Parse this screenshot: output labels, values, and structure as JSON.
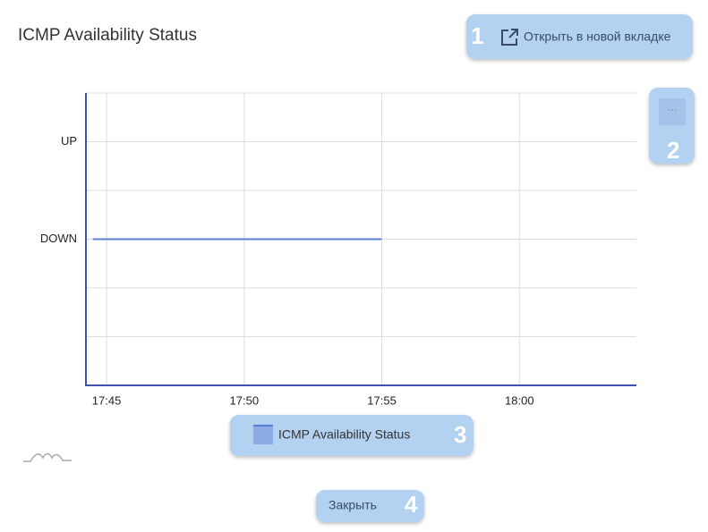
{
  "title": "ICMP Availability Status",
  "buttons": {
    "open_new_tab": "Открыть в новой вкладке",
    "menu": "···",
    "close": "Закрыть"
  },
  "badges": [
    "1",
    "2",
    "3",
    "4"
  ],
  "chart_data": {
    "type": "line",
    "x": [
      1064.5,
      1075
    ],
    "series": [
      {
        "name": "ICMP Availability Status",
        "color": "#5b7fd4",
        "values": [
          0,
          0
        ]
      }
    ],
    "xlim": [
      1064.25,
      1084.25
    ],
    "xticks": [
      {
        "value": 1065,
        "label": "17:45"
      },
      {
        "value": 1070,
        "label": "17:50"
      },
      {
        "value": 1075,
        "label": "17:55"
      },
      {
        "value": 1080,
        "label": "18:00"
      }
    ],
    "ylim": [
      -1.5,
      1.5
    ],
    "yticks": [
      {
        "value": 1,
        "label": "UP"
      },
      {
        "value": 0,
        "label": "DOWN"
      }
    ],
    "yminor": [
      -1.5,
      -1,
      -0.5,
      0.5,
      1.5
    ],
    "grid": true
  }
}
